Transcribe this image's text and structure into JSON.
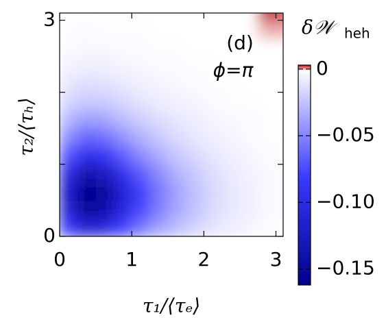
{
  "chart_data": {
    "type": "heatmap",
    "xlabel": "τ₁/⟨τₑ⟩",
    "ylabel": "τ₂/⟨τₕ⟩",
    "annotations": [
      "(d)",
      "ϕ=π"
    ],
    "colorbar_label": "δ𝒲",
    "colorbar_label_subscript": "heh",
    "xlim": [
      0,
      3.1
    ],
    "ylim": [
      0,
      3.1
    ],
    "xticks": [
      0,
      1,
      2,
      3
    ],
    "yticks": [
      0,
      3
    ],
    "yminorticks": [
      1,
      2
    ],
    "clim": [
      -0.162,
      0.003
    ],
    "cticks": [
      0,
      {
        "value": -0.05,
        "label": "−0.05"
      },
      {
        "value": -0.1,
        "label": "−0.10"
      },
      {
        "value": -0.15,
        "label": "−0.15"
      }
    ],
    "colormap": {
      "negative": [
        "#ffffff",
        "#3a3aff",
        "#00008b"
      ],
      "positive": [
        "#ffffff",
        "#c00000"
      ]
    },
    "x": [
      0.125,
      0.375,
      0.625,
      0.875,
      1.125,
      1.375,
      1.625,
      1.875,
      2.125,
      2.375,
      2.625,
      2.875,
      3.125
    ],
    "y": [
      0.125,
      0.375,
      0.625,
      0.875,
      1.125,
      1.375,
      1.625,
      1.875,
      2.125,
      2.375,
      2.625,
      2.875,
      3.125
    ],
    "z": [
      [
        -0.084,
        -0.112,
        -0.103,
        -0.078,
        -0.056,
        -0.039,
        -0.027,
        -0.018,
        -0.011,
        -0.007,
        -0.004,
        -0.002,
        -0.001
      ],
      [
        -0.114,
        -0.152,
        -0.14,
        -0.106,
        -0.076,
        -0.053,
        -0.036,
        -0.025,
        -0.015,
        -0.01,
        -0.006,
        -0.003,
        -0.002
      ],
      [
        -0.12,
        -0.16,
        -0.147,
        -0.112,
        -0.08,
        -0.056,
        -0.038,
        -0.026,
        -0.016,
        -0.01,
        -0.006,
        -0.003,
        -0.002
      ],
      [
        -0.102,
        -0.136,
        -0.125,
        -0.095,
        -0.068,
        -0.048,
        -0.032,
        -0.022,
        -0.014,
        -0.009,
        -0.005,
        -0.003,
        -0.002
      ],
      [
        -0.072,
        -0.096,
        -0.088,
        -0.067,
        -0.048,
        -0.034,
        -0.023,
        -0.016,
        -0.01,
        -0.006,
        -0.004,
        -0.002,
        -0.001
      ],
      [
        -0.048,
        -0.064,
        -0.059,
        -0.045,
        -0.032,
        -0.022,
        -0.015,
        -0.01,
        -0.006,
        -0.004,
        -0.002,
        -0.001,
        -0.001
      ],
      [
        -0.03,
        -0.04,
        -0.037,
        -0.028,
        -0.02,
        -0.014,
        -0.01,
        -0.007,
        -0.004,
        -0.003,
        -0.002,
        -0.001,
        0
      ],
      [
        -0.017,
        -0.022,
        -0.021,
        -0.016,
        -0.011,
        -0.008,
        -0.005,
        -0.004,
        -0.002,
        -0.001,
        -0.001,
        0,
        0
      ],
      [
        -0.01,
        -0.013,
        -0.012,
        -0.009,
        -0.006,
        -0.004,
        -0.003,
        -0.002,
        -0.001,
        -0.001,
        0,
        0,
        0
      ],
      [
        -0.005,
        -0.006,
        -0.006,
        -0.004,
        -0.003,
        -0.002,
        -0.002,
        -0.001,
        -0.001,
        0,
        0,
        0,
        0
      ],
      [
        -0.002,
        -0.003,
        -0.003,
        -0.002,
        -0.002,
        -0.001,
        -0.001,
        0,
        0,
        0,
        0,
        0,
        0
      ],
      [
        -0.001,
        -0.002,
        -0.001,
        -0.001,
        -0.001,
        0,
        0,
        0,
        0,
        0,
        0,
        0.001,
        0.001
      ],
      [
        0,
        0,
        0,
        0,
        0,
        0,
        0,
        0,
        0,
        0,
        0,
        0.003,
        0.002
      ]
    ]
  }
}
